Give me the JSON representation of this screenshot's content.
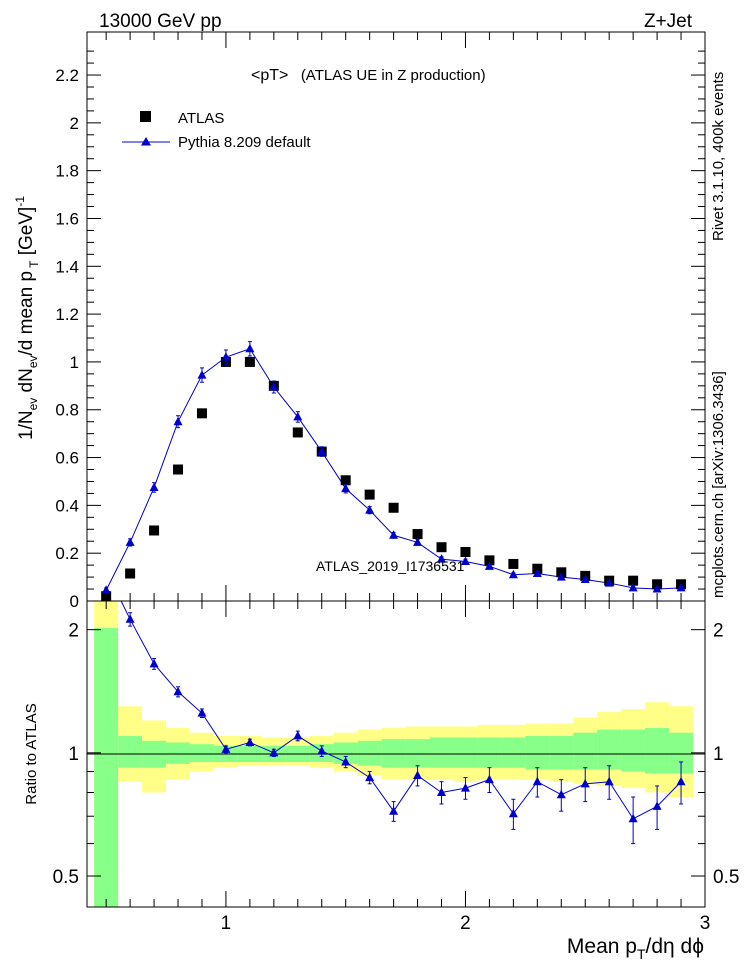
{
  "header": {
    "left": "13000 GeV pp",
    "right": "Z+Jet"
  },
  "chart_data": {
    "type": "scatter",
    "title": "<pT>",
    "subtitle": "(ATLAS UE in Z production)",
    "analysis_id": "ATLAS_2019_I1736531",
    "side_labels": {
      "top": "Rivet 3.1.10,  400k events",
      "bottom": "mcplots.cern.ch [arXiv:1306.3436]"
    },
    "xlabel": "Mean p_T/dη dϕ",
    "xlim": [
      0.42,
      3.0
    ],
    "x_ticks": [
      "1",
      "2",
      "3"
    ],
    "main": {
      "ylabel": "1/N_ev dN_ev/d mean p_T [GeV]^-1",
      "ylim": [
        0,
        2.38
      ],
      "y_ticks": [
        "0",
        "0.2",
        "0.4",
        "0.6",
        "0.8",
        "1",
        "1.2",
        "1.4",
        "1.6",
        "1.8",
        "2",
        "2.2"
      ],
      "legend": {
        "position": "top-left",
        "entries": [
          "ATLAS",
          "Pythia 8.209 default"
        ]
      },
      "series": [
        {
          "name": "ATLAS",
          "color": "#000000",
          "marker": "square",
          "x": [
            0.5,
            0.6,
            0.7,
            0.8,
            0.9,
            1.0,
            1.1,
            1.2,
            1.3,
            1.4,
            1.5,
            1.6,
            1.7,
            1.8,
            1.9,
            2.0,
            2.1,
            2.2,
            2.3,
            2.4,
            2.5,
            2.6,
            2.7,
            2.8,
            2.9
          ],
          "y": [
            0.02,
            0.115,
            0.295,
            0.55,
            0.785,
            1.0,
            1.0,
            0.9,
            0.705,
            0.625,
            0.505,
            0.445,
            0.39,
            0.28,
            0.225,
            0.205,
            0.17,
            0.155,
            0.135,
            0.12,
            0.105,
            0.085,
            0.085,
            0.07,
            0.07
          ]
        },
        {
          "name": "Pythia 8.209 default",
          "color": "#0000cc",
          "marker": "triangle",
          "x": [
            0.5,
            0.6,
            0.7,
            0.8,
            0.9,
            1.0,
            1.1,
            1.2,
            1.3,
            1.4,
            1.5,
            1.6,
            1.7,
            1.8,
            1.9,
            2.0,
            2.1,
            2.2,
            2.3,
            2.4,
            2.5,
            2.6,
            2.7,
            2.8,
            2.9
          ],
          "y": [
            0.045,
            0.245,
            0.475,
            0.75,
            0.945,
            1.02,
            1.055,
            0.895,
            0.77,
            0.625,
            0.47,
            0.38,
            0.275,
            0.245,
            0.175,
            0.165,
            0.145,
            0.11,
            0.115,
            0.1,
            0.09,
            0.075,
            0.055,
            0.05,
            0.055
          ],
          "err": [
            0.01,
            0.015,
            0.02,
            0.025,
            0.03,
            0.03,
            0.03,
            0.025,
            0.022,
            0.02,
            0.018,
            0.015,
            0.012,
            0.012,
            0.01,
            0.01,
            0.01,
            0.008,
            0.008,
            0.008,
            0.008,
            0.006,
            0.006,
            0.006,
            0.006
          ]
        }
      ]
    },
    "ratio": {
      "ylabel": "Ratio to ATLAS",
      "ylim": [
        0.42,
        2.35
      ],
      "log_y": true,
      "y_ticks": [
        "0.5",
        "1",
        "2"
      ],
      "reference": 1.0,
      "bands": {
        "yellow_color": "#ffff88",
        "green_color": "#88ff88",
        "x_edges": [
          0.45,
          0.55,
          0.65,
          0.75,
          0.85,
          0.95,
          1.05,
          1.15,
          1.25,
          1.35,
          1.45,
          1.55,
          1.65,
          1.75,
          1.85,
          1.95,
          2.05,
          2.15,
          2.25,
          2.35,
          2.45,
          2.55,
          2.65,
          2.75,
          2.85,
          2.95
        ],
        "yellow_lo": [
          0.38,
          0.85,
          0.8,
          0.86,
          0.9,
          0.92,
          0.93,
          0.93,
          0.93,
          0.92,
          0.9,
          0.88,
          0.86,
          0.86,
          0.86,
          0.85,
          0.86,
          0.86,
          0.86,
          0.85,
          0.84,
          0.83,
          0.82,
          0.8,
          0.78
        ],
        "yellow_hi": [
          2.4,
          1.3,
          1.2,
          1.15,
          1.12,
          1.1,
          1.1,
          1.09,
          1.09,
          1.1,
          1.12,
          1.14,
          1.15,
          1.16,
          1.16,
          1.16,
          1.17,
          1.17,
          1.18,
          1.18,
          1.22,
          1.26,
          1.28,
          1.33,
          1.3
        ],
        "green_lo": [
          0.38,
          0.92,
          0.92,
          0.94,
          0.95,
          0.95,
          0.95,
          0.95,
          0.95,
          0.95,
          0.94,
          0.93,
          0.92,
          0.92,
          0.92,
          0.92,
          0.92,
          0.92,
          0.91,
          0.91,
          0.91,
          0.91,
          0.9,
          0.89,
          0.89
        ],
        "green_hi": [
          2.02,
          1.1,
          1.07,
          1.06,
          1.05,
          1.04,
          1.04,
          1.04,
          1.04,
          1.05,
          1.06,
          1.07,
          1.08,
          1.08,
          1.09,
          1.09,
          1.09,
          1.09,
          1.1,
          1.1,
          1.12,
          1.14,
          1.14,
          1.15,
          1.12
        ]
      },
      "series": [
        {
          "name": "Pythia 8.209 default",
          "color": "#0000cc",
          "x": [
            0.6,
            0.7,
            0.8,
            0.9,
            1.0,
            1.1,
            1.2,
            1.3,
            1.4,
            1.5,
            1.6,
            1.7,
            1.8,
            1.9,
            2.0,
            2.1,
            2.2,
            2.3,
            2.4,
            2.5,
            2.6,
            2.7,
            2.8,
            2.9
          ],
          "y": [
            2.12,
            1.65,
            1.41,
            1.25,
            1.02,
            1.06,
            1.0,
            1.1,
            1.01,
            0.95,
            0.87,
            0.72,
            0.88,
            0.8,
            0.82,
            0.86,
            0.71,
            0.85,
            0.79,
            0.84,
            0.85,
            0.69,
            0.74,
            0.85
          ],
          "err": [
            0.08,
            0.05,
            0.04,
            0.03,
            0.02,
            0.02,
            0.02,
            0.03,
            0.03,
            0.03,
            0.03,
            0.04,
            0.05,
            0.05,
            0.05,
            0.06,
            0.06,
            0.07,
            0.07,
            0.08,
            0.08,
            0.09,
            0.09,
            0.1
          ]
        }
      ]
    }
  }
}
